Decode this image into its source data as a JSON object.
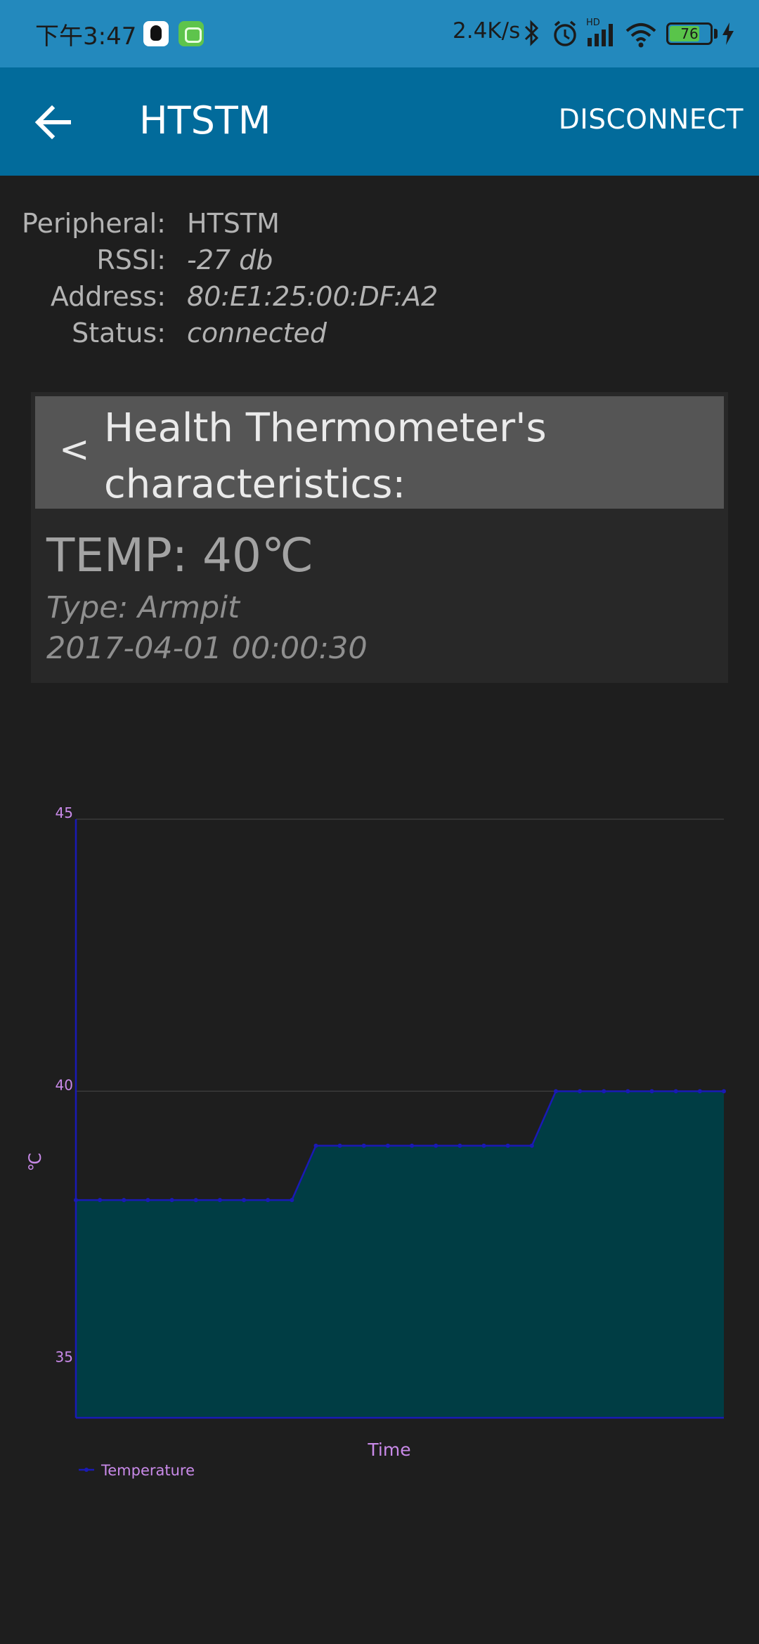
{
  "status_bar": {
    "time": "下午3:47",
    "net_speed": "2.4K/s",
    "battery_level": "76",
    "battery_fraction": 0.76,
    "icons": [
      "qq-icon",
      "android-app-icon",
      "bluetooth-icon",
      "alarm-icon",
      "hd-signal-icon",
      "wifi-icon",
      "battery-icon",
      "charging-icon"
    ]
  },
  "app_bar": {
    "title": "HTSTM",
    "back_icon": "arrow-left-icon",
    "disconnect_label": "DISCONNECT"
  },
  "device": {
    "peripheral_label": "Peripheral:",
    "peripheral_value": "HTSTM",
    "rssi_label": "RSSI:",
    "rssi_value": "-27 db",
    "address_label": "Address:",
    "address_value": "80:E1:25:00:DF:A2",
    "status_label": "Status:",
    "status_value": "connected"
  },
  "characteristic": {
    "back_symbol": "<",
    "title": "Health Thermometer's characteristics:",
    "temp": "TEMP: 40℃",
    "type": "Type: Armpit",
    "timestamp": "2017-04-01 00:00:30"
  },
  "colors": {
    "status_bar": "#2389bd",
    "app_bar": "#026b9b",
    "background": "#1e1e1e",
    "card": "#282828",
    "card_header": "#555555",
    "chart_area": "#003d44",
    "chart_line": "#1a1ab5",
    "chart_label": "#c98ae9"
  },
  "chart_data": {
    "type": "area",
    "xlabel": "Time",
    "ylabel": "℃",
    "ylim": [
      34,
      45
    ],
    "yticks": [
      35,
      40,
      45
    ],
    "grid": true,
    "legend": "bottom-left",
    "series": [
      {
        "name": "Temperature",
        "values": [
          38,
          38,
          38,
          38,
          38,
          38,
          38,
          38,
          38,
          38,
          39,
          39,
          39,
          39,
          39,
          39,
          39,
          39,
          39,
          39,
          40,
          40,
          40,
          40,
          40,
          40,
          40,
          40
        ]
      }
    ]
  }
}
